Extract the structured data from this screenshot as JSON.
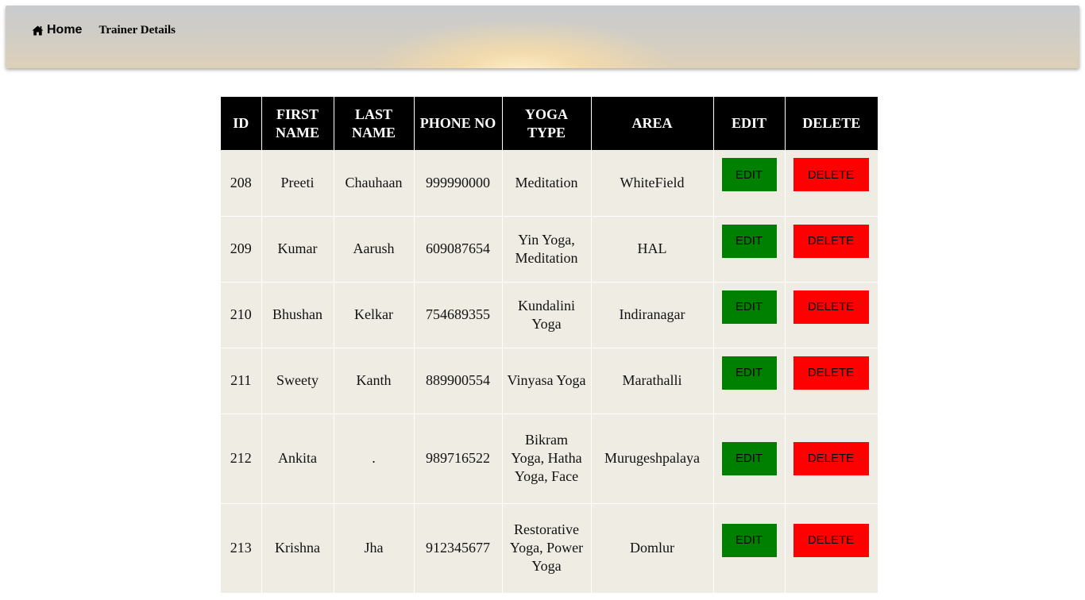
{
  "nav": {
    "home_label": "Home",
    "page_name": "Trainer Details"
  },
  "table": {
    "headers": [
      "ID",
      "FIRST NAME",
      "LAST NAME",
      "PHONE NO",
      "YOGA TYPE",
      "AREA",
      "EDIT",
      "DELETE"
    ],
    "edit_label": "EDIT",
    "delete_label": "DELETE",
    "rows": [
      {
        "id": "208",
        "first": "Preeti",
        "last": "Chauhaan",
        "phone": "999990000",
        "yoga": "Meditation",
        "area": "WhiteField"
      },
      {
        "id": "209",
        "first": "Kumar",
        "last": "Aarush",
        "phone": "609087654",
        "yoga": "Yin Yoga, Meditation",
        "area": "HAL"
      },
      {
        "id": "210",
        "first": "Bhushan",
        "last": "Kelkar",
        "phone": "754689355",
        "yoga": "Kundalini Yoga",
        "area": "Indiranagar"
      },
      {
        "id": "211",
        "first": "Sweety",
        "last": "Kanth",
        "phone": "889900554",
        "yoga": "Vinyasa Yoga",
        "area": "Marathalli"
      },
      {
        "id": "212",
        "first": "Ankita",
        "last": ".",
        "phone": "989716522",
        "yoga": "Bikram Yoga, Hatha Yoga, Face",
        "area": "Murugeshpalaya"
      },
      {
        "id": "213",
        "first": "Krishna",
        "last": "Jha",
        "phone": "912345677",
        "yoga": "Restorative Yoga, Power Yoga",
        "area": "Domlur"
      }
    ]
  },
  "colors": {
    "edit_button": "#008000",
    "delete_button": "#ff0000",
    "header_bg": "#000000",
    "row_bg": "#efece4"
  },
  "icons": {
    "home": "home-icon"
  }
}
